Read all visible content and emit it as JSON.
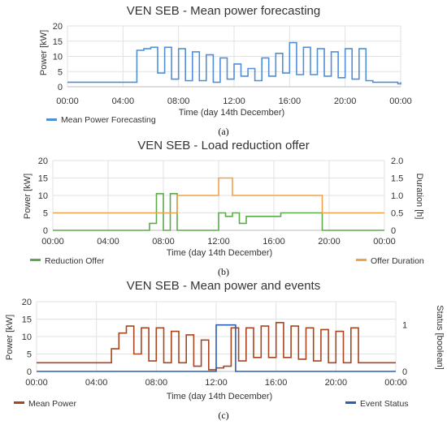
{
  "charts": [
    {
      "title": "VEN SEB - Mean power forecasting",
      "xlabel": "Time (day 14th December)",
      "ylabel": "Power [kW]",
      "caption": "(a)",
      "legend": [
        "Mean Power Forecasting"
      ]
    },
    {
      "title": "VEN SEB - Load reduction offer",
      "xlabel": "Time (day 14th December)",
      "ylabel": "Power [kW]",
      "ylabel2": "Duration [h]",
      "caption": "(b)",
      "legend": [
        "Reduction Offer",
        "Offer Duration"
      ]
    },
    {
      "title": "VEN SEB - Mean power and events",
      "xlabel": "Time (day 14th December)",
      "ylabel": "Power [kW]",
      "ylabel2": "Status [boolean]",
      "caption": "(c)",
      "legend": [
        "Mean Power",
        "Event Status"
      ]
    }
  ],
  "chart_data": [
    {
      "type": "line",
      "title": "VEN SEB - Mean power forecasting",
      "xlabel": "Time (day 14th December)",
      "ylabel": "Power [kW]",
      "xlim": [
        0,
        24
      ],
      "ylim": [
        0,
        20
      ],
      "x_ticks": [
        "00:00",
        "04:00",
        "08:00",
        "12:00",
        "16:00",
        "20:00",
        "00:00"
      ],
      "y_ticks": [
        0,
        5,
        10,
        15,
        20
      ],
      "grid": true,
      "legend": "bottom-left",
      "series": [
        {
          "name": "Mean Power Forecasting",
          "color": "#4f8fd8",
          "step": true,
          "x": [
            0,
            5,
            5.5,
            6,
            6.5,
            7,
            7.5,
            8,
            8.5,
            9,
            9.5,
            10,
            10.5,
            11,
            11.5,
            12,
            12.5,
            13,
            13.5,
            14,
            14.5,
            15,
            15.5,
            16,
            16.5,
            17,
            17.5,
            18,
            18.5,
            19,
            19.5,
            20,
            20.5,
            21,
            21.5,
            22,
            23.8,
            24
          ],
          "y": [
            1.5,
            12,
            12.5,
            13,
            4.5,
            13,
            2.5,
            12.5,
            2,
            11.5,
            2,
            10.5,
            1.5,
            9.5,
            2.5,
            7.5,
            3.5,
            6,
            2,
            9.5,
            3.5,
            11,
            4.5,
            14.5,
            4,
            13,
            4,
            12.5,
            3.5,
            11.5,
            3,
            12.5,
            2.5,
            12.5,
            2,
            1.5,
            1,
            1.5
          ]
        }
      ]
    },
    {
      "type": "line",
      "title": "VEN SEB - Load reduction offer",
      "xlabel": "Time (day 14th December)",
      "ylabel": "Power [kW]",
      "ylabel2": "Duration [h]",
      "xlim": [
        0,
        24
      ],
      "ylim": [
        0,
        20
      ],
      "ylim2": [
        0,
        2
      ],
      "x_ticks": [
        "00:00",
        "04:00",
        "08:00",
        "12:00",
        "16:00",
        "20:00",
        "00:00"
      ],
      "y_ticks": [
        0,
        5,
        10,
        15,
        20
      ],
      "y2_ticks": [
        "0",
        "0.5",
        "1.0",
        "1.5",
        "2.0"
      ],
      "grid": true,
      "legend": "bottom",
      "series": [
        {
          "name": "Reduction Offer",
          "color": "#5cab4a",
          "axis": "left",
          "step": true,
          "x": [
            0,
            7,
            7.5,
            8,
            8.5,
            9,
            12,
            12.5,
            13,
            13.5,
            14,
            15.5,
            16.5,
            19.5,
            24
          ],
          "y": [
            0,
            2,
            10.5,
            0,
            10.5,
            0,
            5,
            4,
            5,
            2,
            4,
            4,
            5,
            0,
            0
          ]
        },
        {
          "name": "Offer Duration",
          "color": "#f0a24a",
          "axis": "right",
          "step": true,
          "x": [
            0,
            9,
            12,
            13,
            19.5,
            24
          ],
          "y": [
            0.5,
            1,
            1.5,
            1,
            0.5,
            0.5
          ]
        }
      ]
    },
    {
      "type": "line",
      "title": "VEN SEB - Mean power and events",
      "xlabel": "Time (day 14th December)",
      "ylabel": "Power [kW]",
      "ylabel2": "Status [boolean]",
      "xlim": [
        0,
        24
      ],
      "ylim": [
        0,
        20
      ],
      "ylim2": [
        0,
        1.5
      ],
      "x_ticks": [
        "00:00",
        "04:00",
        "08:00",
        "12:00",
        "16:00",
        "20:00",
        "00:00"
      ],
      "y_ticks": [
        0,
        5,
        10,
        15,
        20
      ],
      "y2_ticks": [
        "0",
        "1"
      ],
      "grid": true,
      "legend": "bottom",
      "series": [
        {
          "name": "Mean Power",
          "color": "#a8451e",
          "axis": "left",
          "step": true,
          "x": [
            0,
            2,
            4.5,
            5,
            5.5,
            6,
            6.5,
            7,
            7.5,
            8,
            8.5,
            9,
            9.5,
            10,
            10.5,
            11,
            11.5,
            12,
            12.5,
            13,
            13.5,
            14,
            14.5,
            15,
            15.5,
            16,
            16.5,
            17,
            17.5,
            18,
            18.5,
            19,
            19.5,
            20,
            20.5,
            21,
            21.5,
            22,
            24
          ],
          "y": [
            2.5,
            2.5,
            2.5,
            6.5,
            11,
            13,
            5,
            12.5,
            3,
            12.5,
            2.5,
            11.5,
            2.5,
            10.5,
            1.5,
            9,
            0.5,
            1,
            1.5,
            12.5,
            3,
            12.5,
            4,
            13,
            4,
            14,
            4,
            13,
            3.5,
            12.5,
            3,
            12,
            2.5,
            11.5,
            2.5,
            12.5,
            2.5,
            2.5,
            2.5
          ]
        },
        {
          "name": "Event Status",
          "color": "#2a5fb5",
          "axis": "right",
          "step": true,
          "x": [
            0,
            12,
            13.3,
            24
          ],
          "y": [
            0,
            1,
            0,
            0
          ]
        }
      ]
    }
  ]
}
